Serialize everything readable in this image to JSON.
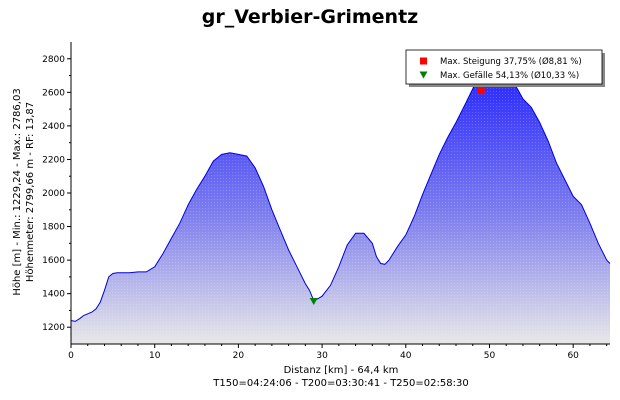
{
  "chart_data": {
    "type": "area",
    "title": "gr_Verbier-Grimentz",
    "xlabel": "Distanz [km] - 64,4 km",
    "xlabel_line2": "T150=04:24:06 - T200=03:30:41 - T250=02:58:30",
    "ylabel": "Höhe [m] - Min.: 1229,24 - Max.: 2786,03",
    "ylabel_line2": "Höhenmeter: 2799,66 m - RF: 13,87",
    "xlim": [
      0,
      64.4
    ],
    "ylim": [
      1100,
      2900
    ],
    "xticks": [
      0,
      10,
      20,
      30,
      40,
      50,
      60
    ],
    "yticks": [
      1200,
      1400,
      1600,
      1800,
      2000,
      2200,
      2400,
      2600,
      2800
    ],
    "grid": false,
    "legend_position": "top-right",
    "colors": {
      "top": "#2020ff",
      "bottom": "#e8e8e8",
      "line": "#0000dd",
      "max_climb": "#ff0000",
      "max_descent": "#008000"
    },
    "series": [
      {
        "x": [
          0,
          0.5,
          1,
          1.5,
          2,
          2.5,
          3,
          3.5,
          4,
          4.5,
          5,
          5.5,
          6,
          7,
          8,
          9,
          10,
          11,
          12,
          13,
          14,
          15,
          16,
          17,
          18,
          19,
          20,
          21,
          22,
          23,
          24,
          25,
          26,
          27,
          28,
          28.5,
          29,
          29.5,
          30,
          31,
          32,
          33,
          34,
          35,
          36,
          36.5,
          37,
          37.5,
          38,
          39,
          40,
          41,
          42,
          43,
          44,
          45,
          46,
          47,
          48,
          48.5,
          49,
          49.5,
          50,
          51,
          52,
          53,
          54,
          55,
          56,
          57,
          58,
          59,
          60,
          61,
          62,
          63,
          64,
          64.4
        ],
        "y": [
          1240,
          1235,
          1250,
          1270,
          1280,
          1290,
          1310,
          1350,
          1420,
          1500,
          1520,
          1525,
          1525,
          1525,
          1530,
          1530,
          1560,
          1640,
          1730,
          1820,
          1930,
          2020,
          2100,
          2190,
          2230,
          2240,
          2230,
          2220,
          2150,
          2040,
          1900,
          1780,
          1660,
          1560,
          1460,
          1420,
          1360,
          1370,
          1385,
          1450,
          1560,
          1690,
          1760,
          1760,
          1700,
          1620,
          1580,
          1575,
          1600,
          1680,
          1750,
          1860,
          1990,
          2110,
          2230,
          2330,
          2420,
          2520,
          2620,
          2680,
          2740,
          2770,
          2780,
          2786,
          2760,
          2650,
          2560,
          2510,
          2420,
          2310,
          2180,
          2080,
          1980,
          1930,
          1820,
          1700,
          1600,
          1580
        ]
      }
    ],
    "markers": [
      {
        "label": "Max. Steigung 37,75% (Ø8,81 %)",
        "x": 49,
        "y": 2610,
        "shape": "square",
        "color": "#ff0000"
      },
      {
        "label": "Max. Gefälle 54,13% (Ø10,33 %)",
        "x": 29,
        "y": 1350,
        "shape": "triangle-down",
        "color": "#008000"
      }
    ]
  }
}
